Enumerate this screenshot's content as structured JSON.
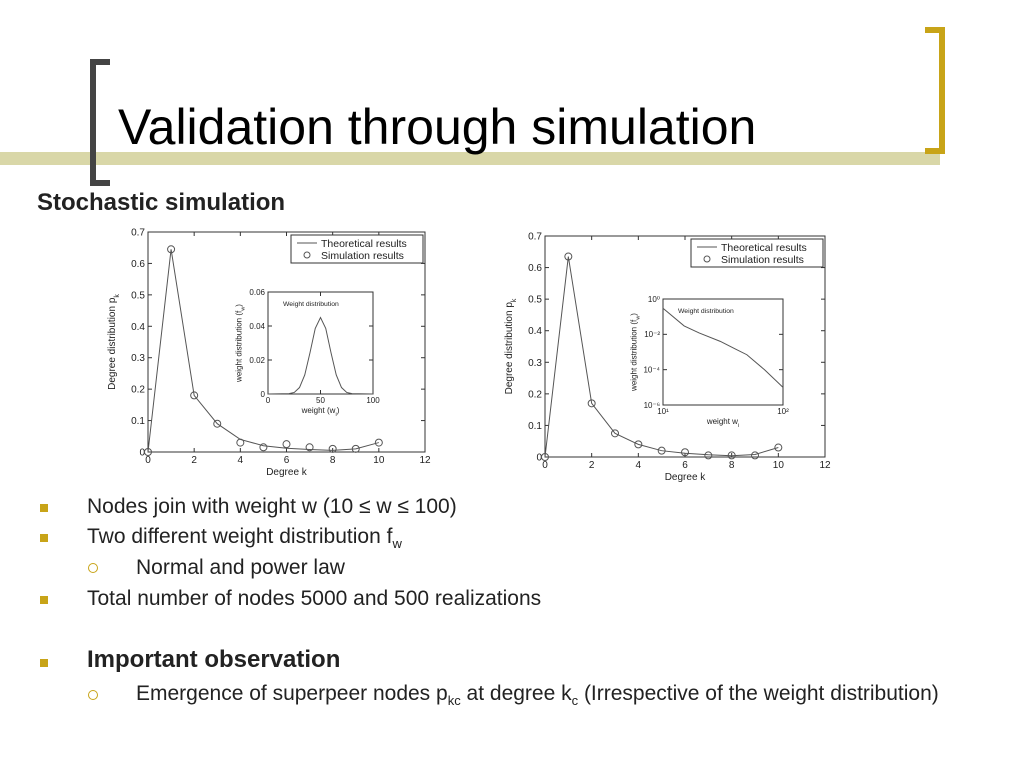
{
  "title": "Validation through simulation",
  "subtitle": "Stochastic simulation",
  "bullets": [
    [
      "Nodes join with weight w (10 ≤ w ≤ 100)"
    ],
    [
      "Two different weight distribution f",
      "w"
    ],
    [
      "Normal and power law"
    ],
    [
      "Total number of nodes 5000 and 500 realizations"
    ],
    [
      "Important observation"
    ],
    [
      "Emergence of superpeer nodes p",
      "kc",
      " at degree k",
      "c",
      " (Irrespective of the weight distribution)"
    ]
  ],
  "chart_data": [
    {
      "type": "line",
      "xlabel": [
        "Degree k"
      ],
      "ylabel": [
        "Degree distribution p",
        "k"
      ],
      "xlim": [
        0,
        12
      ],
      "ylim": [
        0,
        0.7
      ],
      "xticks": [
        0,
        2,
        4,
        6,
        8,
        10,
        12
      ],
      "yticks": [
        0,
        0.1,
        0.2,
        0.3,
        0.4,
        0.5,
        0.6,
        0.7
      ],
      "x": [
        0,
        1,
        2,
        3,
        4,
        5,
        6,
        7,
        8,
        9,
        10
      ],
      "series": [
        {
          "name": "Theoretical results",
          "color": "#555555",
          "marker": "line",
          "values": [
            0,
            0.645,
            0.18,
            0.09,
            0.04,
            0.02,
            0.012,
            0.008,
            0.005,
            0.01,
            0.03
          ]
        },
        {
          "name": "Simulation results",
          "color": "#555555",
          "marker": "circle",
          "values": [
            0,
            0.645,
            0.18,
            0.09,
            0.03,
            0.015,
            0.025,
            0.015,
            0.01,
            0.01,
            0.03
          ]
        }
      ],
      "inset": {
        "type": "line",
        "title": "Weight distribution",
        "xlabel": [
          "weight (w",
          "i",
          ")"
        ],
        "ylabel": [
          "weight distribution (f",
          "w",
          ")"
        ],
        "xlim": [
          0,
          100
        ],
        "ylim": [
          0,
          0.06
        ],
        "xticks": [
          0,
          50,
          100
        ],
        "yticks": [
          0,
          0.02,
          0.04,
          0.06
        ],
        "x": [
          0,
          20,
          25,
          30,
          35,
          40,
          45,
          50,
          55,
          60,
          65,
          70,
          75,
          80,
          100
        ],
        "series": [
          {
            "color": "#555555",
            "marker": "line",
            "values": [
              0,
              0.0002,
              0.0009,
              0.0038,
              0.0112,
              0.0243,
              0.0386,
              0.045,
              0.0386,
              0.0243,
              0.0112,
              0.0038,
              0.0009,
              0.0002,
              0
            ]
          }
        ]
      }
    },
    {
      "type": "line",
      "xlabel": [
        "Degree k"
      ],
      "ylabel": [
        "Degree distribution p",
        "k"
      ],
      "xlim": [
        0,
        12
      ],
      "ylim": [
        0,
        0.7
      ],
      "xticks": [
        0,
        2,
        4,
        6,
        8,
        10,
        12
      ],
      "yticks": [
        0,
        0.1,
        0.2,
        0.3,
        0.4,
        0.5,
        0.6,
        0.7
      ],
      "x": [
        0,
        1,
        2,
        3,
        4,
        5,
        6,
        7,
        8,
        9,
        10
      ],
      "series": [
        {
          "name": "Theoretical results",
          "color": "#555555",
          "marker": "line",
          "values": [
            0,
            0.635,
            0.17,
            0.075,
            0.04,
            0.02,
            0.012,
            0.007,
            0.004,
            0.008,
            0.03
          ]
        },
        {
          "name": "Simulation results",
          "color": "#555555",
          "marker": "circle",
          "values": [
            0,
            0.635,
            0.17,
            0.075,
            0.04,
            0.02,
            0.015,
            0.005,
            0.005,
            0.005,
            0.03
          ]
        }
      ],
      "inset": {
        "type": "line",
        "title": "Weight distribution",
        "xlabel": [
          "weight w",
          "i"
        ],
        "ylabel": [
          "weight distribution (f",
          "w",
          ")"
        ],
        "xlim": [
          10,
          100
        ],
        "ylim": [
          1e-06,
          1
        ],
        "xlog": true,
        "ylog": true,
        "xticks": [
          {
            "value": 10,
            "label": "10¹"
          },
          {
            "value": 100,
            "label": "10²"
          }
        ],
        "yticks": [
          {
            "value": 1,
            "label": "10⁰"
          },
          {
            "value": 0.01,
            "label": "10⁻²"
          },
          {
            "value": 0.0001,
            "label": "10⁻⁴"
          },
          {
            "value": 1e-06,
            "label": "10⁻⁶"
          }
        ],
        "x": [
          10,
          15,
          20,
          30,
          40,
          50,
          70,
          100
        ],
        "series": [
          {
            "color": "#555555",
            "marker": "line",
            "values": [
              0.3,
              0.03,
              0.012,
              0.004,
              0.0015,
              0.0007,
              0.0001,
              1e-05
            ]
          }
        ]
      }
    }
  ]
}
